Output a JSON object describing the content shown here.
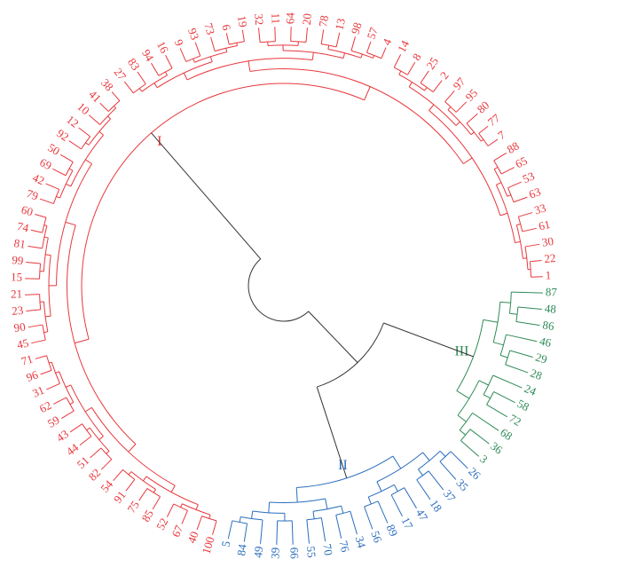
{
  "clusters": [
    {
      "name": "I",
      "color": "#e8383d",
      "leaves": [
        1,
        22,
        30,
        61,
        33,
        63,
        53,
        65,
        88,
        7,
        77,
        80,
        95,
        97,
        2,
        25,
        8,
        14,
        4,
        57,
        98,
        13,
        78,
        20,
        64,
        11,
        32,
        19,
        6,
        73,
        93,
        9,
        16,
        94,
        83,
        27,
        38,
        41,
        10,
        12,
        92,
        50,
        69,
        42,
        79,
        60,
        74,
        81,
        99,
        15,
        21,
        23,
        90,
        45,
        71,
        96,
        31,
        62,
        59,
        43,
        44,
        51,
        82,
        54,
        91,
        75,
        85,
        52,
        67,
        40,
        100
      ]
    },
    {
      "name": "II",
      "color": "#2a6ebd",
      "leaves": [
        5,
        84,
        49,
        39,
        66,
        55,
        70,
        76,
        34,
        56,
        89,
        17,
        47,
        18,
        37,
        35,
        26
      ]
    },
    {
      "name": "III",
      "color": "#2e8b57",
      "leaves": [
        3,
        36,
        68,
        72,
        58,
        24,
        28,
        29,
        46,
        86,
        48,
        87
      ]
    }
  ]
}
